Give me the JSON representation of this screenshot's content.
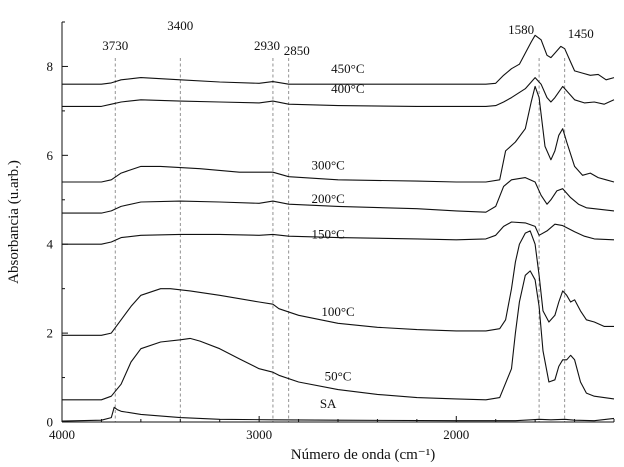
{
  "chart_data": {
    "type": "line",
    "title": "",
    "xlabel": "Número de onda (cm⁻¹)",
    "ylabel": "Absorbancia (u.arb.)",
    "xlim": [
      4000,
      1200
    ],
    "ylim": [
      0,
      9
    ],
    "x_reversed": true,
    "grid": false,
    "legend": "none",
    "x_ticks": [
      4000,
      3000,
      2000
    ],
    "y_ticks": [
      0,
      2,
      4,
      6,
      8
    ],
    "reference_lines": [
      {
        "x": 3730,
        "label": "3730"
      },
      {
        "x": 3400,
        "label": "3400"
      },
      {
        "x": 2930,
        "label": "2930"
      },
      {
        "x": 2850,
        "label": "2850"
      },
      {
        "x": 1580,
        "label": "1580"
      },
      {
        "x": 1450,
        "label": "1450"
      }
    ],
    "series": [
      {
        "name": "SA",
        "label_at": [
          2650,
          0.32
        ],
        "points": [
          [
            4000,
            0.02
          ],
          [
            3800,
            0.04
          ],
          [
            3750,
            0.1
          ],
          [
            3735,
            0.33
          ],
          [
            3720,
            0.28
          ],
          [
            3700,
            0.24
          ],
          [
            3600,
            0.17
          ],
          [
            3400,
            0.1
          ],
          [
            3200,
            0.06
          ],
          [
            2930,
            0.05
          ],
          [
            2600,
            0.04
          ],
          [
            2000,
            0.03
          ],
          [
            1700,
            0.03
          ],
          [
            1620,
            0.05
          ],
          [
            1580,
            0.06
          ],
          [
            1520,
            0.05
          ],
          [
            1450,
            0.06
          ],
          [
            1400,
            0.04
          ],
          [
            1300,
            0.03
          ],
          [
            1200,
            0.08
          ]
        ]
      },
      {
        "name": "50°C",
        "label_at": [
          2600,
          0.93
        ],
        "points": [
          [
            4000,
            0.5
          ],
          [
            3800,
            0.5
          ],
          [
            3750,
            0.58
          ],
          [
            3700,
            0.85
          ],
          [
            3650,
            1.35
          ],
          [
            3600,
            1.65
          ],
          [
            3500,
            1.8
          ],
          [
            3400,
            1.85
          ],
          [
            3350,
            1.88
          ],
          [
            3300,
            1.82
          ],
          [
            3200,
            1.65
          ],
          [
            3100,
            1.42
          ],
          [
            3000,
            1.2
          ],
          [
            2930,
            1.12
          ],
          [
            2900,
            1.05
          ],
          [
            2800,
            0.9
          ],
          [
            2600,
            0.73
          ],
          [
            2400,
            0.62
          ],
          [
            2200,
            0.55
          ],
          [
            2000,
            0.52
          ],
          [
            1850,
            0.5
          ],
          [
            1780,
            0.55
          ],
          [
            1720,
            1.2
          ],
          [
            1700,
            2.0
          ],
          [
            1680,
            2.7
          ],
          [
            1650,
            3.3
          ],
          [
            1625,
            3.4
          ],
          [
            1600,
            3.2
          ],
          [
            1580,
            2.6
          ],
          [
            1560,
            1.6
          ],
          [
            1530,
            0.9
          ],
          [
            1500,
            0.95
          ],
          [
            1480,
            1.25
          ],
          [
            1460,
            1.4
          ],
          [
            1440,
            1.4
          ],
          [
            1420,
            1.5
          ],
          [
            1400,
            1.4
          ],
          [
            1370,
            0.9
          ],
          [
            1340,
            0.65
          ],
          [
            1300,
            0.58
          ],
          [
            1250,
            0.55
          ],
          [
            1200,
            0.52
          ]
        ]
      },
      {
        "name": "100°C",
        "label_at": [
          2600,
          2.38
        ],
        "points": [
          [
            4000,
            1.95
          ],
          [
            3800,
            1.95
          ],
          [
            3750,
            2.0
          ],
          [
            3700,
            2.3
          ],
          [
            3650,
            2.6
          ],
          [
            3600,
            2.85
          ],
          [
            3500,
            3.0
          ],
          [
            3450,
            3.0
          ],
          [
            3350,
            2.95
          ],
          [
            3200,
            2.85
          ],
          [
            3000,
            2.7
          ],
          [
            2930,
            2.65
          ],
          [
            2900,
            2.55
          ],
          [
            2800,
            2.4
          ],
          [
            2600,
            2.22
          ],
          [
            2400,
            2.13
          ],
          [
            2200,
            2.08
          ],
          [
            2000,
            2.05
          ],
          [
            1850,
            2.05
          ],
          [
            1780,
            2.1
          ],
          [
            1750,
            2.3
          ],
          [
            1720,
            3.0
          ],
          [
            1700,
            3.6
          ],
          [
            1680,
            4.0
          ],
          [
            1650,
            4.25
          ],
          [
            1625,
            4.3
          ],
          [
            1600,
            4.0
          ],
          [
            1580,
            3.3
          ],
          [
            1560,
            2.5
          ],
          [
            1530,
            2.25
          ],
          [
            1500,
            2.4
          ],
          [
            1480,
            2.7
          ],
          [
            1460,
            2.95
          ],
          [
            1440,
            2.85
          ],
          [
            1420,
            2.7
          ],
          [
            1400,
            2.75
          ],
          [
            1370,
            2.5
          ],
          [
            1340,
            2.3
          ],
          [
            1300,
            2.25
          ],
          [
            1250,
            2.15
          ],
          [
            1200,
            2.15
          ]
        ]
      },
      {
        "name": "150°C",
        "label_at": [
          2650,
          4.13
        ],
        "points": [
          [
            4000,
            4.0
          ],
          [
            3800,
            4.0
          ],
          [
            3750,
            4.05
          ],
          [
            3700,
            4.15
          ],
          [
            3600,
            4.2
          ],
          [
            3400,
            4.22
          ],
          [
            3200,
            4.22
          ],
          [
            3000,
            4.2
          ],
          [
            2930,
            4.22
          ],
          [
            2850,
            4.18
          ],
          [
            2600,
            4.15
          ],
          [
            2200,
            4.12
          ],
          [
            2000,
            4.1
          ],
          [
            1850,
            4.12
          ],
          [
            1800,
            4.2
          ],
          [
            1760,
            4.4
          ],
          [
            1720,
            4.5
          ],
          [
            1650,
            4.48
          ],
          [
            1600,
            4.4
          ],
          [
            1580,
            4.2
          ],
          [
            1540,
            4.3
          ],
          [
            1500,
            4.45
          ],
          [
            1460,
            4.42
          ],
          [
            1400,
            4.28
          ],
          [
            1350,
            4.18
          ],
          [
            1300,
            4.12
          ],
          [
            1200,
            4.1
          ]
        ]
      },
      {
        "name": "200°C",
        "label_at": [
          2650,
          4.93
        ],
        "points": [
          [
            4000,
            4.7
          ],
          [
            3800,
            4.7
          ],
          [
            3750,
            4.75
          ],
          [
            3700,
            4.85
          ],
          [
            3600,
            4.95
          ],
          [
            3400,
            4.97
          ],
          [
            3200,
            4.95
          ],
          [
            3000,
            4.92
          ],
          [
            2930,
            4.97
          ],
          [
            2850,
            4.9
          ],
          [
            2600,
            4.85
          ],
          [
            2200,
            4.8
          ],
          [
            2000,
            4.75
          ],
          [
            1850,
            4.72
          ],
          [
            1800,
            4.85
          ],
          [
            1760,
            5.3
          ],
          [
            1720,
            5.45
          ],
          [
            1650,
            5.5
          ],
          [
            1600,
            5.4
          ],
          [
            1570,
            5.1
          ],
          [
            1540,
            4.9
          ],
          [
            1520,
            5.0
          ],
          [
            1490,
            5.2
          ],
          [
            1460,
            5.25
          ],
          [
            1420,
            5.05
          ],
          [
            1380,
            4.9
          ],
          [
            1340,
            4.82
          ],
          [
            1300,
            4.8
          ],
          [
            1200,
            4.75
          ]
        ]
      },
      {
        "name": "300°C",
        "label_at": [
          2650,
          5.68
        ],
        "points": [
          [
            4000,
            5.4
          ],
          [
            3800,
            5.4
          ],
          [
            3750,
            5.45
          ],
          [
            3700,
            5.6
          ],
          [
            3600,
            5.75
          ],
          [
            3500,
            5.75
          ],
          [
            3300,
            5.7
          ],
          [
            3100,
            5.62
          ],
          [
            2930,
            5.62
          ],
          [
            2850,
            5.52
          ],
          [
            2600,
            5.45
          ],
          [
            2200,
            5.42
          ],
          [
            2000,
            5.4
          ],
          [
            1850,
            5.4
          ],
          [
            1780,
            5.45
          ],
          [
            1750,
            6.1
          ],
          [
            1700,
            6.3
          ],
          [
            1650,
            6.6
          ],
          [
            1620,
            7.2
          ],
          [
            1600,
            7.55
          ],
          [
            1580,
            7.3
          ],
          [
            1550,
            6.2
          ],
          [
            1520,
            5.9
          ],
          [
            1500,
            6.1
          ],
          [
            1480,
            6.45
          ],
          [
            1460,
            6.6
          ],
          [
            1440,
            6.3
          ],
          [
            1400,
            5.75
          ],
          [
            1360,
            5.55
          ],
          [
            1320,
            5.6
          ],
          [
            1280,
            5.5
          ],
          [
            1240,
            5.45
          ],
          [
            1200,
            5.4
          ]
        ]
      },
      {
        "name": "400°C",
        "label_at": [
          2550,
          7.4
        ],
        "points": [
          [
            4000,
            7.1
          ],
          [
            3800,
            7.1
          ],
          [
            3750,
            7.15
          ],
          [
            3700,
            7.2
          ],
          [
            3600,
            7.25
          ],
          [
            3400,
            7.22
          ],
          [
            3200,
            7.2
          ],
          [
            3000,
            7.18
          ],
          [
            2930,
            7.22
          ],
          [
            2850,
            7.15
          ],
          [
            2600,
            7.12
          ],
          [
            2200,
            7.1
          ],
          [
            2000,
            7.1
          ],
          [
            1850,
            7.1
          ],
          [
            1800,
            7.12
          ],
          [
            1760,
            7.2
          ],
          [
            1720,
            7.3
          ],
          [
            1650,
            7.5
          ],
          [
            1600,
            7.75
          ],
          [
            1570,
            7.6
          ],
          [
            1540,
            7.3
          ],
          [
            1520,
            7.2
          ],
          [
            1500,
            7.3
          ],
          [
            1460,
            7.55
          ],
          [
            1440,
            7.45
          ],
          [
            1400,
            7.25
          ],
          [
            1350,
            7.18
          ],
          [
            1300,
            7.2
          ],
          [
            1250,
            7.15
          ],
          [
            1200,
            7.25
          ]
        ]
      },
      {
        "name": "450°C",
        "label_at": [
          2550,
          7.85
        ],
        "points": [
          [
            4000,
            7.6
          ],
          [
            3800,
            7.6
          ],
          [
            3750,
            7.63
          ],
          [
            3700,
            7.7
          ],
          [
            3600,
            7.75
          ],
          [
            3400,
            7.7
          ],
          [
            3200,
            7.65
          ],
          [
            3000,
            7.62
          ],
          [
            2930,
            7.66
          ],
          [
            2850,
            7.6
          ],
          [
            2600,
            7.6
          ],
          [
            2200,
            7.6
          ],
          [
            2000,
            7.6
          ],
          [
            1850,
            7.6
          ],
          [
            1800,
            7.62
          ],
          [
            1760,
            7.8
          ],
          [
            1720,
            7.95
          ],
          [
            1680,
            8.05
          ],
          [
            1650,
            8.3
          ],
          [
            1620,
            8.55
          ],
          [
            1600,
            8.7
          ],
          [
            1570,
            8.6
          ],
          [
            1540,
            8.25
          ],
          [
            1520,
            8.2
          ],
          [
            1500,
            8.3
          ],
          [
            1470,
            8.45
          ],
          [
            1450,
            8.4
          ],
          [
            1420,
            8.1
          ],
          [
            1400,
            7.9
          ],
          [
            1360,
            7.85
          ],
          [
            1320,
            7.8
          ],
          [
            1280,
            7.82
          ],
          [
            1240,
            7.7
          ],
          [
            1200,
            7.75
          ]
        ]
      }
    ]
  }
}
